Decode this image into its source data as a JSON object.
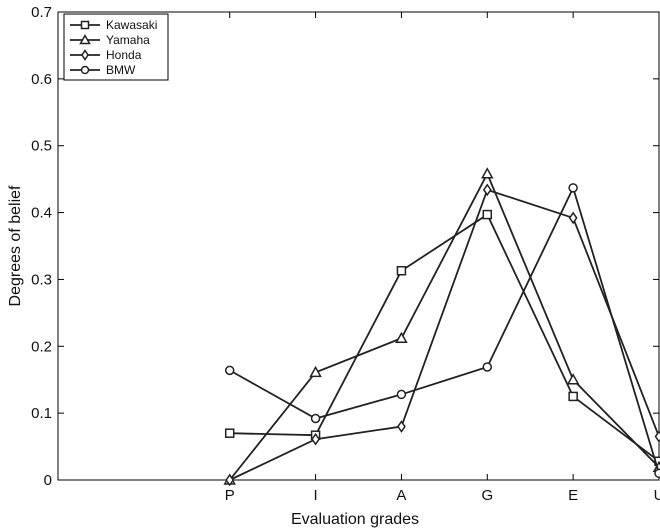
{
  "chart_data": {
    "type": "line",
    "title": "",
    "xlabel": "Evaluation grades",
    "ylabel": "Degrees of belief",
    "categories": [
      "P",
      "I",
      "A",
      "G",
      "E",
      "U"
    ],
    "x_positions": [
      1,
      2,
      3,
      4,
      5,
      6
    ],
    "xlim": [
      -1,
      6
    ],
    "ylim": [
      0,
      0.7
    ],
    "yticks": [
      0,
      0.1,
      0.2,
      0.3,
      0.4,
      0.5,
      0.6,
      0.7
    ],
    "ytick_labels": [
      "0",
      "0.1",
      "0.2",
      "0.3",
      "0.4",
      "0.5",
      "0.6",
      "0.7"
    ],
    "grid": false,
    "legend_position": "top-left",
    "series": [
      {
        "name": "Kawasaki",
        "marker": "square",
        "values": [
          0.07,
          0.067,
          0.313,
          0.397,
          0.125,
          0.028
        ]
      },
      {
        "name": "Yamaha",
        "marker": "triangle",
        "values": [
          0.0,
          0.161,
          0.212,
          0.458,
          0.15,
          0.019
        ]
      },
      {
        "name": "Honda",
        "marker": "diamond",
        "values": [
          0.0,
          0.061,
          0.08,
          0.434,
          0.392,
          0.065
        ]
      },
      {
        "name": "BMW",
        "marker": "circle",
        "values": [
          0.164,
          0.092,
          0.128,
          0.169,
          0.437,
          0.01
        ]
      }
    ],
    "colors": {
      "line": "#222222",
      "axis": "#000000",
      "background": "#ffffff"
    }
  }
}
